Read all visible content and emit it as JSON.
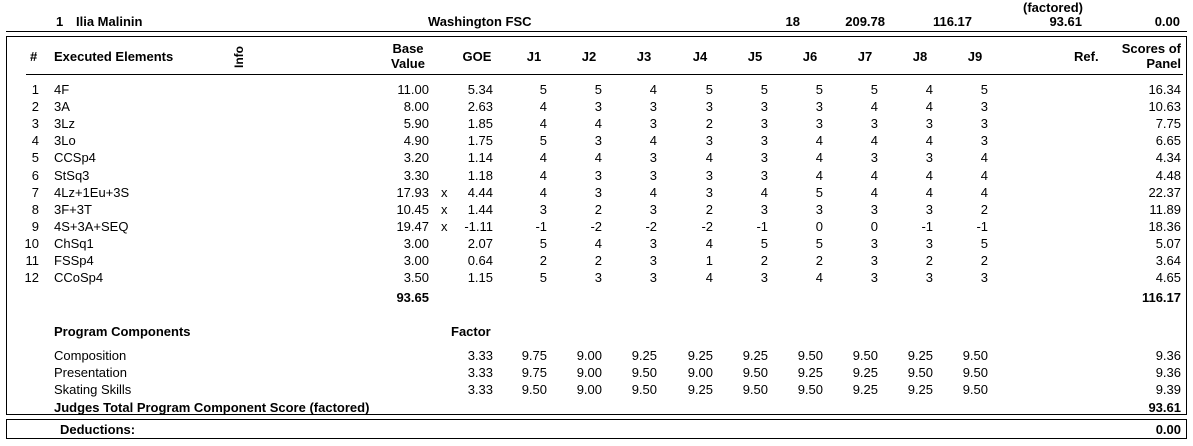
{
  "skater": {
    "rank": "1",
    "name": "Ilia Malinin",
    "club": "Washington FSC",
    "starting_number": "18",
    "total_segment_score": "209.78",
    "total_element_score": "116.17",
    "pcs_factored_label": "(factored)",
    "pcs_factored": "93.61",
    "deductions_total": "0.00"
  },
  "elements_header": {
    "num": "#",
    "executed": "Executed Elements",
    "info": "Info",
    "base_line1": "Base",
    "base_line2": "Value",
    "goe": "GOE",
    "judges": [
      "J1",
      "J2",
      "J3",
      "J4",
      "J5",
      "J6",
      "J7",
      "J8",
      "J9"
    ],
    "ref": "Ref.",
    "scores_line1": "Scores of",
    "scores_line2": "Panel"
  },
  "elements": [
    {
      "num": "1",
      "name": "4F",
      "info": "",
      "base": "11.00",
      "x": "",
      "goe": "5.34",
      "j": [
        "5",
        "5",
        "4",
        "5",
        "5",
        "5",
        "5",
        "4",
        "5"
      ],
      "score": "16.34"
    },
    {
      "num": "2",
      "name": "3A",
      "info": "",
      "base": "8.00",
      "x": "",
      "goe": "2.63",
      "j": [
        "4",
        "3",
        "3",
        "3",
        "3",
        "3",
        "4",
        "4",
        "3"
      ],
      "score": "10.63"
    },
    {
      "num": "3",
      "name": "3Lz",
      "info": "",
      "base": "5.90",
      "x": "",
      "goe": "1.85",
      "j": [
        "4",
        "4",
        "3",
        "2",
        "3",
        "3",
        "3",
        "3",
        "3"
      ],
      "score": "7.75"
    },
    {
      "num": "4",
      "name": "3Lo",
      "info": "",
      "base": "4.90",
      "x": "",
      "goe": "1.75",
      "j": [
        "5",
        "3",
        "4",
        "3",
        "3",
        "4",
        "4",
        "4",
        "3"
      ],
      "score": "6.65"
    },
    {
      "num": "5",
      "name": "CCSp4",
      "info": "",
      "base": "3.20",
      "x": "",
      "goe": "1.14",
      "j": [
        "4",
        "4",
        "3",
        "4",
        "3",
        "4",
        "3",
        "3",
        "4"
      ],
      "score": "4.34"
    },
    {
      "num": "6",
      "name": "StSq3",
      "info": "",
      "base": "3.30",
      "x": "",
      "goe": "1.18",
      "j": [
        "4",
        "3",
        "3",
        "3",
        "3",
        "4",
        "4",
        "4",
        "4"
      ],
      "score": "4.48"
    },
    {
      "num": "7",
      "name": "4Lz+1Eu+3S",
      "info": "",
      "base": "17.93",
      "x": "x",
      "goe": "4.44",
      "j": [
        "4",
        "3",
        "4",
        "3",
        "4",
        "5",
        "4",
        "4",
        "4"
      ],
      "score": "22.37"
    },
    {
      "num": "8",
      "name": "3F+3T",
      "info": "",
      "base": "10.45",
      "x": "x",
      "goe": "1.44",
      "j": [
        "3",
        "2",
        "3",
        "2",
        "3",
        "3",
        "3",
        "3",
        "2"
      ],
      "score": "11.89"
    },
    {
      "num": "9",
      "name": "4S+3A+SEQ",
      "info": "",
      "base": "19.47",
      "x": "x",
      "goe": "-1.11",
      "j": [
        "-1",
        "-2",
        "-2",
        "-2",
        "-1",
        "0",
        "0",
        "-1",
        "-1"
      ],
      "score": "18.36"
    },
    {
      "num": "10",
      "name": "ChSq1",
      "info": "",
      "base": "3.00",
      "x": "",
      "goe": "2.07",
      "j": [
        "5",
        "4",
        "3",
        "4",
        "5",
        "5",
        "3",
        "3",
        "5"
      ],
      "score": "5.07"
    },
    {
      "num": "11",
      "name": "FSSp4",
      "info": "",
      "base": "3.00",
      "x": "",
      "goe": "0.64",
      "j": [
        "2",
        "2",
        "3",
        "1",
        "2",
        "2",
        "3",
        "2",
        "2"
      ],
      "score": "3.64"
    },
    {
      "num": "12",
      "name": "CCoSp4",
      "info": "",
      "base": "3.50",
      "x": "",
      "goe": "1.15",
      "j": [
        "5",
        "3",
        "3",
        "4",
        "3",
        "4",
        "3",
        "3",
        "3"
      ],
      "score": "4.65"
    }
  ],
  "elements_totals": {
    "base": "93.65",
    "score": "116.17"
  },
  "components_header": {
    "title": "Program Components",
    "factor": "Factor"
  },
  "components": [
    {
      "name": "Composition",
      "factor": "3.33",
      "j": [
        "9.75",
        "9.00",
        "9.25",
        "9.25",
        "9.25",
        "9.50",
        "9.50",
        "9.25",
        "9.50"
      ],
      "score": "9.36"
    },
    {
      "name": "Presentation",
      "factor": "3.33",
      "j": [
        "9.75",
        "9.00",
        "9.50",
        "9.00",
        "9.50",
        "9.25",
        "9.25",
        "9.50",
        "9.50"
      ],
      "score": "9.36"
    },
    {
      "name": "Skating Skills",
      "factor": "3.33",
      "j": [
        "9.50",
        "9.00",
        "9.50",
        "9.25",
        "9.50",
        "9.50",
        "9.25",
        "9.25",
        "9.50"
      ],
      "score": "9.39"
    }
  ],
  "components_total": {
    "label": "Judges Total Program Component Score (factored)",
    "score": "93.61"
  },
  "deductions": {
    "label": "Deductions:",
    "value": "0.00"
  }
}
